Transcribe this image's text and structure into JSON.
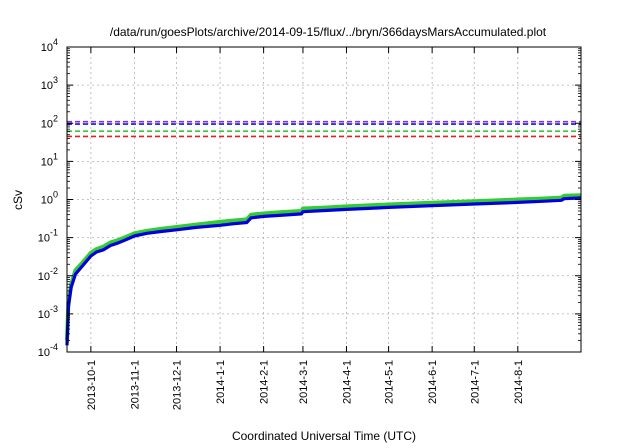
{
  "chart_data": {
    "type": "line",
    "title": "/data/run/goesPlots/archive/2014-09-15/flux/../bryn/366daysMarsAccumulated.plot",
    "xlabel": "Coordinated Universal Time (UTC)",
    "ylabel": "cSv",
    "x_range": [
      "2013-09-14",
      "2014-09-15"
    ],
    "ylim": [
      0.0001,
      10000
    ],
    "yscale": "log",
    "grid": true,
    "x_ticks": [
      "2013-10-1",
      "2013-11-1",
      "2013-12-1",
      "2014-1-1",
      "2014-2-1",
      "2014-3-1",
      "2014-4-1",
      "2014-5-1",
      "2014-6-1",
      "2014-7-1",
      "2014-8-1"
    ],
    "y_ticks": [
      {
        "value": 0.0001,
        "base": "10",
        "exp": "-4"
      },
      {
        "value": 0.001,
        "base": "10",
        "exp": "-3"
      },
      {
        "value": 0.01,
        "base": "10",
        "exp": "-2"
      },
      {
        "value": 0.1,
        "base": "10",
        "exp": "-1"
      },
      {
        "value": 1,
        "base": "10",
        "exp": "0"
      },
      {
        "value": 10,
        "base": "10",
        "exp": "1"
      },
      {
        "value": 100,
        "base": "10",
        "exp": "2"
      },
      {
        "value": 1000,
        "base": "10",
        "exp": "3"
      },
      {
        "value": 10000,
        "base": "10",
        "exp": "4"
      }
    ],
    "reference_lines": [
      {
        "value": 110,
        "color": "#8a2be2"
      },
      {
        "value": 95,
        "color": "#1a1adc"
      },
      {
        "value": 62,
        "color": "#2ecc2e"
      },
      {
        "value": 45,
        "color": "#e02020"
      }
    ],
    "series": [
      {
        "color": "#33cc33",
        "x": [
          "2013-09-14",
          "2013-09-15",
          "2013-09-17",
          "2013-09-20",
          "2013-09-25",
          "2013-10-01",
          "2013-10-05",
          "2013-10-10",
          "2013-10-15",
          "2013-10-20",
          "2013-10-25",
          "2013-11-01",
          "2013-11-10",
          "2013-11-20",
          "2013-12-01",
          "2013-12-15",
          "2014-01-01",
          "2014-01-10",
          "2014-01-20",
          "2014-01-23",
          "2014-02-01",
          "2014-02-15",
          "2014-02-28",
          "2014-03-01",
          "2014-03-15",
          "2014-04-01",
          "2014-05-01",
          "2014-06-01",
          "2014-07-01",
          "2014-08-01",
          "2014-08-20",
          "2014-09-01",
          "2014-09-03",
          "2014-09-15"
        ],
        "values": [
          0.0002,
          0.002,
          0.006,
          0.014,
          0.022,
          0.04,
          0.05,
          0.058,
          0.075,
          0.085,
          0.1,
          0.13,
          0.15,
          0.17,
          0.19,
          0.22,
          0.26,
          0.28,
          0.3,
          0.4,
          0.43,
          0.47,
          0.5,
          0.58,
          0.61,
          0.66,
          0.74,
          0.82,
          0.9,
          1.0,
          1.06,
          1.12,
          1.25,
          1.3
        ]
      },
      {
        "color": "#0000dd",
        "x": [
          "2013-09-14",
          "2013-09-15",
          "2013-09-17",
          "2013-09-20",
          "2013-09-25",
          "2013-10-01",
          "2013-10-05",
          "2013-10-10",
          "2013-10-15",
          "2013-10-20",
          "2013-10-25",
          "2013-11-01",
          "2013-11-10",
          "2013-11-20",
          "2013-12-01",
          "2013-12-15",
          "2014-01-01",
          "2014-01-10",
          "2014-01-20",
          "2014-01-23",
          "2014-02-01",
          "2014-02-15",
          "2014-02-28",
          "2014-03-01",
          "2014-03-15",
          "2014-04-01",
          "2014-05-01",
          "2014-06-01",
          "2014-07-01",
          "2014-08-01",
          "2014-08-20",
          "2014-09-01",
          "2014-09-03",
          "2014-09-15"
        ],
        "values": [
          0.00015,
          0.0015,
          0.005,
          0.011,
          0.018,
          0.033,
          0.042,
          0.048,
          0.062,
          0.072,
          0.085,
          0.11,
          0.13,
          0.145,
          0.16,
          0.185,
          0.21,
          0.23,
          0.25,
          0.33,
          0.36,
          0.39,
          0.42,
          0.48,
          0.51,
          0.55,
          0.62,
          0.69,
          0.76,
          0.84,
          0.9,
          0.95,
          1.05,
          1.1
        ]
      }
    ]
  }
}
